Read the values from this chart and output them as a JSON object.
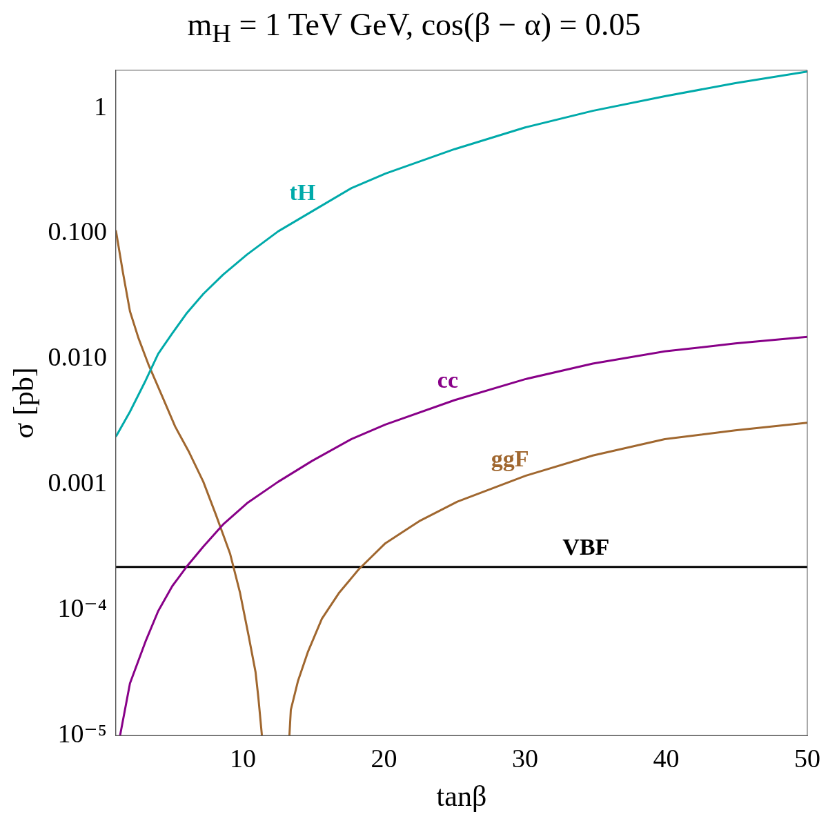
{
  "chart_data": {
    "type": "line",
    "title": "m$_{H}$ = 1 TeV GeV, cos(β − α) = 0.05",
    "xlabel": "tanβ",
    "ylabel": "σ [pb]",
    "xlim": [
      1,
      50
    ],
    "xticks": [
      10,
      20,
      30,
      40,
      50
    ],
    "ylim": [
      1e-05,
      2
    ],
    "log": "y",
    "yticks": [
      {
        "value": 1,
        "label": "1"
      },
      {
        "value": 0.1,
        "label": "0.100"
      },
      {
        "value": 0.01,
        "label": "0.010"
      },
      {
        "value": 0.001,
        "label": "0.001"
      },
      {
        "value": 0.0001,
        "label": "10⁻⁴"
      },
      {
        "value": 1e-05,
        "label": "10⁻⁵"
      }
    ],
    "grid": false,
    "legend": false,
    "marker": "none",
    "line_style": "solid",
    "series": [
      {
        "name": "tH",
        "color": "#00aaaa",
        "x": [
          1,
          2,
          3.1,
          4,
          5,
          6,
          7.2,
          8.6,
          10.3,
          12.5,
          14.9,
          17.7,
          20.1,
          25,
          30,
          34.8,
          39.9,
          44.9,
          50
        ],
        "values": [
          0.0024,
          0.0038,
          0.0067,
          0.011,
          0.016,
          0.023,
          0.033,
          0.047,
          0.068,
          0.104,
          0.15,
          0.23,
          0.3,
          0.47,
          0.7,
          0.95,
          1.24,
          1.58,
          1.95
        ]
      },
      {
        "name": "cc",
        "color": "#880088",
        "x": [
          1.3,
          2,
          3.1,
          4,
          5,
          6,
          7.2,
          8.6,
          10.3,
          12.5,
          14.9,
          17.7,
          20.1,
          25,
          30,
          34.8,
          39.9,
          44.9,
          50
        ],
        "values": [
          1e-05,
          2.6e-05,
          5.6e-05,
          9.8e-05,
          0.000155,
          0.00022,
          0.00032,
          0.00048,
          0.00071,
          0.00105,
          0.00154,
          0.0023,
          0.003,
          0.0047,
          0.0069,
          0.0092,
          0.0115,
          0.0133,
          0.015
        ]
      },
      {
        "name": "ggF",
        "color": "#a0672f",
        "x": [
          1,
          1.5,
          2,
          2.6,
          3.3,
          4.3,
          5.2,
          6.2,
          7.2,
          8.1,
          9.1,
          9.8,
          10.4,
          10.9,
          11.1,
          11.35,
          null,
          13.3,
          13.4,
          13.9,
          14.6,
          15.6,
          16.8,
          18.2,
          20.1,
          22.5,
          25.2,
          30,
          34.8,
          39.9,
          44.9,
          50
        ],
        "values": [
          0.106,
          0.049,
          0.024,
          0.0147,
          0.0091,
          0.005,
          0.0029,
          0.0018,
          0.00105,
          0.00057,
          0.00028,
          0.000137,
          6.3e-05,
          3.2e-05,
          2e-05,
          1e-05,
          null,
          1e-05,
          1.6e-05,
          2.7e-05,
          4.6e-05,
          8.5e-05,
          0.000136,
          0.00021,
          0.00034,
          0.00051,
          0.00073,
          0.00117,
          0.0017,
          0.0023,
          0.0027,
          0.0031
        ]
      },
      {
        "name": "VBF",
        "color": "#000000",
        "x": [
          1,
          50
        ],
        "values": [
          0.00022,
          0.00022
        ]
      }
    ]
  }
}
